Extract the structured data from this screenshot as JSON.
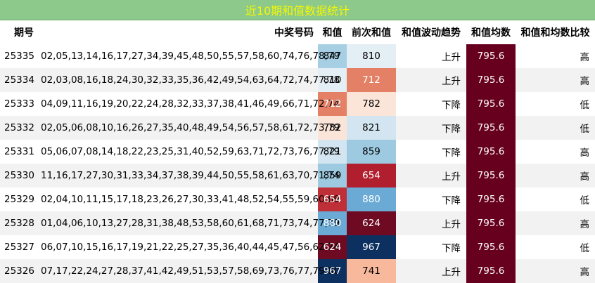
{
  "title": "近10期和值数据统计",
  "headers": {
    "issue": "期号",
    "numbers": "中奖号码",
    "sum": "和值",
    "prev_sum": "前次和值",
    "trend": "和值波动趋势",
    "avg": "和值均数",
    "compare": "和值和均数比较"
  },
  "rows": [
    {
      "issue": "25335",
      "numbers": "02,05,13,14,16,17,27,34,39,45,48,50,55,57,58,60,74,76,78,79",
      "sum": "847",
      "prev_sum": "810",
      "trend": "上升",
      "avg": "795.6",
      "compare": "高"
    },
    {
      "issue": "25334",
      "numbers": "02,03,08,16,18,24,30,32,33,35,36,42,49,54,63,64,72,74,77,78",
      "sum": "810",
      "prev_sum": "712",
      "trend": "上升",
      "avg": "795.6",
      "compare": "高"
    },
    {
      "issue": "25333",
      "numbers": "04,09,11,16,19,20,22,24,28,32,33,37,38,41,46,49,66,71,72,74",
      "sum": "712",
      "prev_sum": "782",
      "trend": "下降",
      "avg": "795.6",
      "compare": "低"
    },
    {
      "issue": "25332",
      "numbers": "02,05,06,08,10,16,26,27,35,40,48,49,54,56,57,58,61,72,73,79",
      "sum": "782",
      "prev_sum": "821",
      "trend": "下降",
      "avg": "795.6",
      "compare": "低"
    },
    {
      "issue": "25331",
      "numbers": "05,06,07,08,14,18,22,23,25,31,40,52,59,63,71,72,73,76,77,79",
      "sum": "821",
      "prev_sum": "859",
      "trend": "下降",
      "avg": "795.6",
      "compare": "高"
    },
    {
      "issue": "25330",
      "numbers": "11,16,17,27,30,31,33,34,37,38,39,44,50,55,58,61,63,70,71,74",
      "sum": "859",
      "prev_sum": "654",
      "trend": "上升",
      "avg": "795.6",
      "compare": "高"
    },
    {
      "issue": "25329",
      "numbers": "02,04,10,11,15,17,18,23,26,27,30,33,41,48,52,54,55,59,60,69",
      "sum": "654",
      "prev_sum": "880",
      "trend": "下降",
      "avg": "795.6",
      "compare": "低"
    },
    {
      "issue": "25328",
      "numbers": "01,04,06,10,13,27,28,31,38,48,53,58,60,61,68,71,73,74,77,79",
      "sum": "880",
      "prev_sum": "624",
      "trend": "上升",
      "avg": "795.6",
      "compare": "高"
    },
    {
      "issue": "25327",
      "numbers": "06,07,10,15,16,17,19,21,22,25,27,35,36,40,44,45,47,56,62,74",
      "sum": "624",
      "prev_sum": "967",
      "trend": "下降",
      "avg": "795.6",
      "compare": "低"
    },
    {
      "issue": "25326",
      "numbers": "07,17,22,24,27,28,37,41,42,49,51,53,57,58,69,73,76,77,79,80",
      "sum": "967",
      "prev_sum": "741",
      "trend": "上升",
      "avg": "795.6",
      "compare": "高"
    }
  ],
  "colors": {
    "title_bg": "#8cc98a",
    "title_text": "#f7f700",
    "avg_bg": "#67001f",
    "sum_cells": [
      "#a6cfe4",
      "#e4eef5",
      "#e48066",
      "#fbe5d9",
      "#d2e5f0",
      "#9ecae1",
      "#bf2f37",
      "#6aaad4",
      "#6e0a21",
      "#0c305f"
    ],
    "prev_sum_cells": [
      "#e4eef5",
      "#e48066",
      "#fbe5d9",
      "#d2e5f0",
      "#9ecae1",
      "#b11f2e",
      "#6aaad4",
      "#6e0a21",
      "#0c305f",
      "#f7b89b"
    ],
    "sum_text": [
      "#000000",
      "#000000",
      "#ffffff",
      "#000000",
      "#000000",
      "#000000",
      "#ffffff",
      "#ffffff",
      "#ffffff",
      "#ffffff"
    ],
    "prev_sum_text": [
      "#000000",
      "#ffffff",
      "#000000",
      "#000000",
      "#000000",
      "#ffffff",
      "#ffffff",
      "#ffffff",
      "#ffffff",
      "#000000"
    ]
  }
}
